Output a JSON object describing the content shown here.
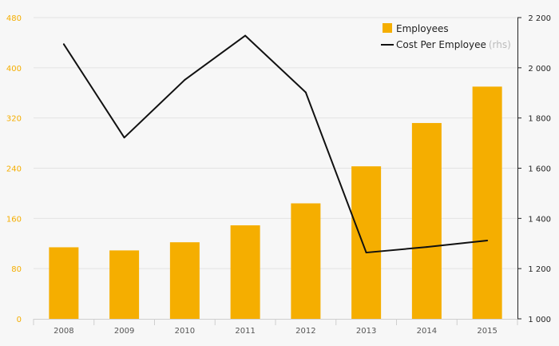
{
  "chart_data": {
    "type": "bar+line",
    "categories": [
      "2008",
      "2009",
      "2010",
      "2011",
      "2012",
      "2013",
      "2014",
      "2015"
    ],
    "series": [
      {
        "name": "Employees",
        "type": "bar",
        "axis": "left",
        "color": "#f5ae00",
        "values": [
          114,
          109,
          122,
          149,
          184,
          243,
          312,
          370
        ]
      },
      {
        "name": "Cost Per Employee",
        "type": "line",
        "axis": "right",
        "color": "#111111",
        "values": [
          2094,
          1722,
          1952,
          2128,
          1902,
          1264,
          1286,
          1312
        ]
      }
    ],
    "left_axis": {
      "min": 0,
      "max": 480,
      "ticks": [
        "0",
        "80",
        "160",
        "240",
        "320",
        "400",
        "480"
      ],
      "color": "#f5ae00"
    },
    "right_axis": {
      "min": 1000,
      "max": 2200,
      "ticks": [
        "1 000",
        "1 200",
        "1 400",
        "1 600",
        "1 800",
        "2 000",
        "2 200"
      ]
    },
    "legend": {
      "position": "top-right",
      "items": [
        {
          "label": "Employees",
          "suffix": ""
        },
        {
          "label": "Cost Per Employee",
          "suffix": "(rhs)"
        }
      ]
    },
    "grid": true
  }
}
